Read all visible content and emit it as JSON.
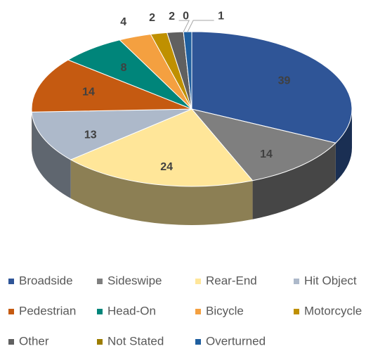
{
  "chart_data": {
    "type": "pie",
    "categories": [
      "Broadside",
      "Sideswipe",
      "Rear-End",
      "Hit Object",
      "Pedestrian",
      "Head-On",
      "Bicycle",
      "Motorcycle",
      "Other",
      "Not Stated",
      "Overturned"
    ],
    "values": [
      39,
      14,
      24,
      13,
      14,
      8,
      4,
      2,
      2,
      0,
      1
    ],
    "colors": [
      "#2f5597",
      "#7f7f7f",
      "#ffe699",
      "#adb9ca",
      "#c55a11",
      "#00857a",
      "#f4a040",
      "#bf9000",
      "#606060",
      "#9c7c00",
      "#1f5f9f"
    ],
    "legend": "bottom"
  }
}
